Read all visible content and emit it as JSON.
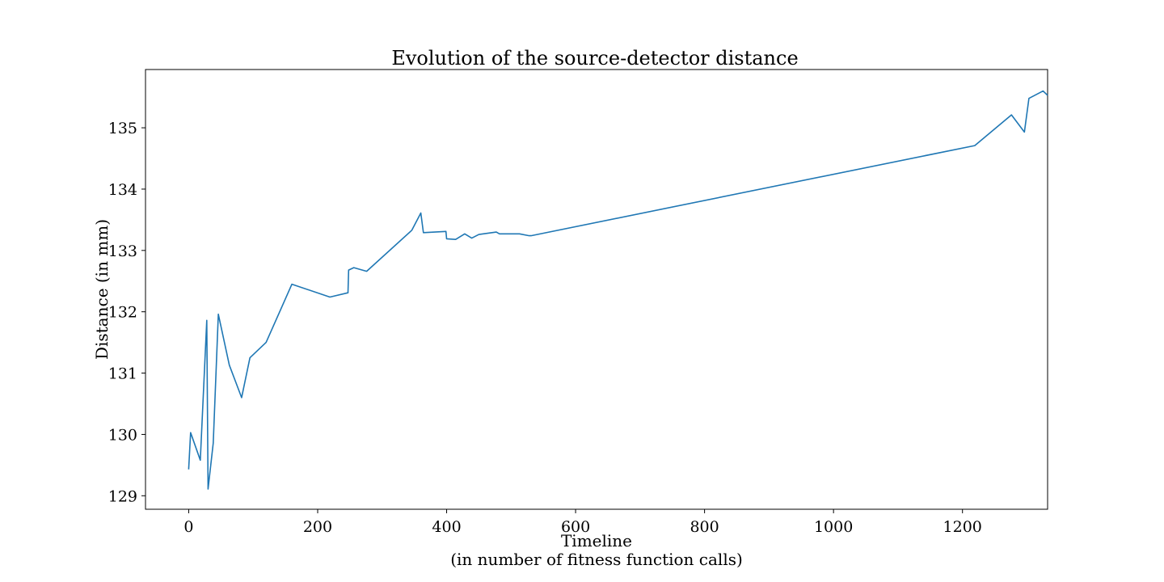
{
  "chart_data": {
    "type": "line",
    "title": "Evolution of the source-detector distance",
    "xlabel": "Timeline",
    "xlabel_sub": "(in number of fitness function calls)",
    "ylabel": "Distance (in mm)",
    "xlim": [
      -67,
      1332
    ],
    "ylim": [
      128.78,
      135.95
    ],
    "xticks": [
      0,
      200,
      400,
      600,
      800,
      1000,
      1200
    ],
    "yticks": [
      129,
      130,
      131,
      132,
      133,
      134,
      135
    ],
    "grid": false,
    "line_color": "#1f77b4",
    "series": [
      {
        "x": [
          0,
          3,
          18,
          28,
          30,
          38,
          46,
          63,
          82,
          95,
          120,
          160,
          219,
          247,
          248,
          256,
          276,
          346,
          360,
          364,
          399,
          400,
          414,
          428,
          439,
          450,
          477,
          482,
          513,
          528,
          531,
          1219,
          1276,
          1296,
          1303,
          1325,
          1332
        ],
        "y": [
          129.43,
          130.03,
          129.58,
          131.86,
          129.11,
          129.86,
          131.96,
          131.13,
          130.6,
          131.25,
          131.5,
          132.45,
          132.24,
          132.31,
          132.68,
          132.72,
          132.66,
          133.33,
          133.61,
          133.29,
          133.31,
          133.19,
          133.18,
          133.27,
          133.2,
          133.26,
          133.3,
          133.27,
          133.27,
          133.24,
          133.24,
          134.71,
          135.21,
          134.93,
          135.48,
          135.6,
          135.53
        ]
      }
    ]
  }
}
